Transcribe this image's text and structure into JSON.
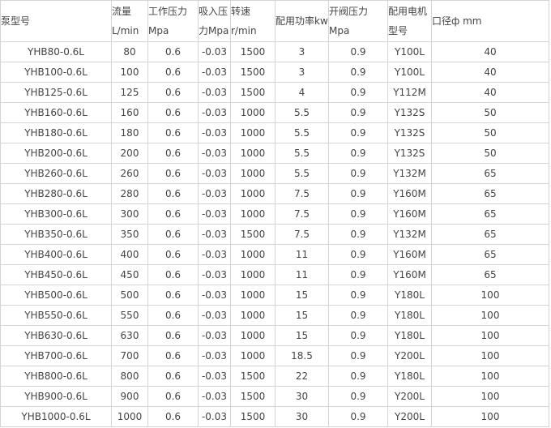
{
  "headers": [
    [
      "泵型号",
      ""
    ],
    [
      "流量",
      "L/min"
    ],
    [
      "工作压力",
      "Mpa"
    ],
    [
      "吸入压",
      "力Mpa"
    ],
    [
      "转速",
      "r/min"
    ],
    [
      "配用功率kw",
      ""
    ],
    [
      "开阀压力",
      "Mpa"
    ],
    [
      "配用电机",
      "型号"
    ],
    [
      "口径ф mm",
      ""
    ]
  ],
  "rows": [
    [
      "YHB80-0.6L",
      "80",
      "0.6",
      "-0.03",
      "1500",
      "3",
      "0.9",
      "Y100L",
      "40"
    ],
    [
      "YHB100-0.6L",
      "100",
      "0.6",
      "-0.03",
      "1500",
      "3",
      "0.9",
      "Y100L",
      "40"
    ],
    [
      "YHB125-0.6L",
      "125",
      "0.6",
      "-0.03",
      "1500",
      "4",
      "0.9",
      "Y112M",
      "40"
    ],
    [
      "YHB160-0.6L",
      "160",
      "0.6",
      "-0.03",
      "1000",
      "5.5",
      "0.9",
      "Y132S",
      "50"
    ],
    [
      "YHB180-0.6L",
      "180",
      "0.6",
      "-0.03",
      "1000",
      "5.5",
      "0.9",
      "Y132S",
      "50"
    ],
    [
      "YHB200-0.6L",
      "200",
      "0.6",
      "-0.03",
      "1000",
      "5.5",
      "0.9",
      "Y132S",
      "50"
    ],
    [
      "YHB260-0.6L",
      "260",
      "0.6",
      "-0.03",
      "1000",
      "5.5",
      "0.9",
      "Y132M",
      "65"
    ],
    [
      "YHB280-0.6L",
      "280",
      "0.6",
      "-0.03",
      "1000",
      "7.5",
      "0.9",
      "Y160M",
      "65"
    ],
    [
      "YHB300-0.6L",
      "300",
      "0.6",
      "-0.03",
      "1000",
      "7.5",
      "0.9",
      "Y160M",
      "65"
    ],
    [
      "YHB350-0.6L",
      "350",
      "0.6",
      "-0.03",
      "1500",
      "7.5",
      "0.9",
      "Y132M",
      "65"
    ],
    [
      "YHB400-0.6L",
      "400",
      "0.6",
      "-0.03",
      "1000",
      "11",
      "0.9",
      "Y160M",
      "65"
    ],
    [
      "YHB450-0.6L",
      "450",
      "0.6",
      "-0.03",
      "1000",
      "11",
      "0.9",
      "Y160M",
      "65"
    ],
    [
      "YHB500-0.6L",
      "500",
      "0.6",
      "-0.03",
      "1000",
      "15",
      "0.9",
      "Y180L",
      "100"
    ],
    [
      "YHB550-0.6L",
      "550",
      "0.6",
      "-0.03",
      "1000",
      "15",
      "0.9",
      "Y180L",
      "100"
    ],
    [
      "YHB630-0.6L",
      "630",
      "0.6",
      "-0.03",
      "1000",
      "15",
      "0.9",
      "Y180L",
      "100"
    ],
    [
      "YHB700-0.6L",
      "700",
      "0.6",
      "-0.03",
      "1000",
      "18.5",
      "0.9",
      "Y200L",
      "100"
    ],
    [
      "YHB800-0.6L",
      "800",
      "0.6",
      "-0.03",
      "1500",
      "22",
      "0.9",
      "Y180L",
      "100"
    ],
    [
      "YHB900-0.6L",
      "900",
      "0.6",
      "-0.03",
      "1500",
      "30",
      "0.9",
      "Y200L",
      "100"
    ],
    [
      "YHB1000-0.6L",
      "1000",
      "0.6",
      "-0.03",
      "1500",
      "30",
      "0.9",
      "Y200L",
      "100"
    ]
  ]
}
